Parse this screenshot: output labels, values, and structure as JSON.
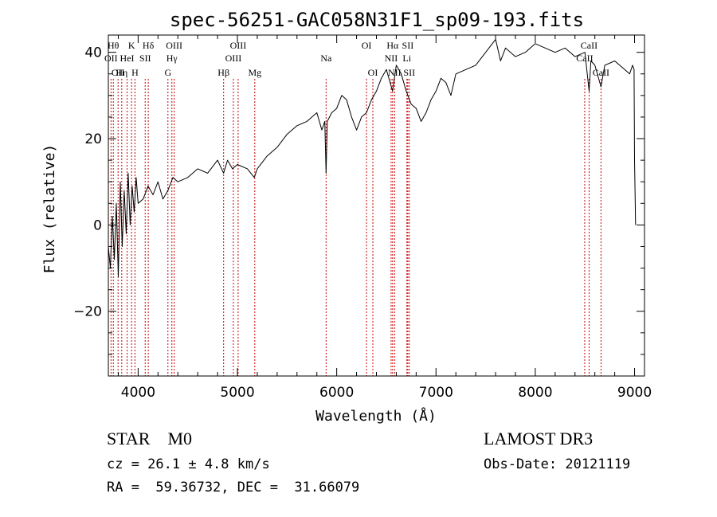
{
  "chart_data": {
    "type": "line",
    "title": "spec-56251-GAC058N31F1_sp09-193.fits",
    "xlabel": "Wavelength (Å)",
    "ylabel": "Flux (relative)",
    "xlim": [
      3700,
      9100
    ],
    "ylim": [
      -35,
      44
    ],
    "xticks": [
      {
        "value": 4000,
        "label": "4000"
      },
      {
        "value": 5000,
        "label": "5000"
      },
      {
        "value": 6000,
        "label": "6000"
      },
      {
        "value": 7000,
        "label": "7000"
      },
      {
        "value": 8000,
        "label": "8000"
      },
      {
        "value": 9000,
        "label": "9000"
      }
    ],
    "yticks": [
      {
        "value": -20,
        "label": "−20"
      },
      {
        "value": 0,
        "label": "0"
      },
      {
        "value": 20,
        "label": "20"
      },
      {
        "value": 40,
        "label": "40"
      }
    ],
    "series": [
      {
        "name": "flux",
        "color": "#000000",
        "x": [
          3700,
          3720,
          3740,
          3760,
          3780,
          3800,
          3820,
          3840,
          3860,
          3880,
          3900,
          3920,
          3940,
          3960,
          3980,
          4000,
          4050,
          4100,
          4150,
          4200,
          4250,
          4300,
          4350,
          4400,
          4500,
          4600,
          4700,
          4800,
          4861,
          4900,
          4950,
          5000,
          5100,
          5170,
          5200,
          5300,
          5400,
          5500,
          5600,
          5700,
          5800,
          5850,
          5880,
          5893,
          5905,
          5950,
          6000,
          6050,
          6100,
          6150,
          6200,
          6250,
          6300,
          6350,
          6400,
          6450,
          6500,
          6563,
          6600,
          6650,
          6700,
          6750,
          6800,
          6850,
          6900,
          6950,
          7000,
          7050,
          7100,
          7150,
          7200,
          7300,
          7400,
          7500,
          7600,
          7650,
          7700,
          7800,
          7900,
          8000,
          8100,
          8200,
          8300,
          8400,
          8500,
          8542,
          8560,
          8600,
          8662,
          8700,
          8800,
          8900,
          8950,
          8980,
          8995,
          9000,
          9010
        ],
        "values": [
          -5,
          -10,
          2,
          -8,
          5,
          -12,
          10,
          -5,
          8,
          -2,
          12,
          0,
          9,
          3,
          11,
          5,
          6,
          9,
          7,
          10,
          6,
          8,
          11,
          10,
          11,
          13,
          12,
          15,
          12,
          15,
          13,
          14,
          13,
          11,
          13,
          16,
          18,
          21,
          23,
          24,
          26,
          22,
          24,
          12,
          24,
          26,
          27,
          30,
          29,
          25,
          22,
          25,
          26,
          29,
          31,
          34,
          36,
          31,
          37,
          35,
          31,
          28,
          27,
          24,
          26,
          29,
          31,
          34,
          33,
          30,
          35,
          36,
          37,
          40,
          43,
          38,
          41,
          39,
          40,
          42,
          41,
          40,
          41,
          39,
          40,
          31,
          38,
          37,
          32,
          37,
          38,
          36,
          35,
          37,
          36,
          15,
          0
        ]
      }
    ],
    "line_markers": {
      "color": "#cc0000",
      "lines": [
        {
          "x": 3727,
          "label": "OII",
          "row": 2
        },
        {
          "x": 3750,
          "label": "Hθ",
          "row": 1
        },
        {
          "x": 3798,
          "label": "OII",
          "row": 3
        },
        {
          "x": 3835,
          "label": "Hη",
          "row": 3
        },
        {
          "x": 3889,
          "label": "HeI",
          "row": 2
        },
        {
          "x": 3934,
          "label": "K",
          "row": 1
        },
        {
          "x": 3968,
          "label": "H",
          "row": 3
        },
        {
          "x": 4071,
          "label": "SII",
          "row": 2
        },
        {
          "x": 4102,
          "label": "Hδ",
          "row": 1
        },
        {
          "x": 4300,
          "label": "G",
          "row": 3
        },
        {
          "x": 4340,
          "label": "Hγ",
          "row": 2
        },
        {
          "x": 4363,
          "label": "OIII",
          "row": 1
        },
        {
          "x": 4861,
          "label": "Hβ",
          "row": 3
        },
        {
          "x": 4959,
          "label": "OIII",
          "row": 2
        },
        {
          "x": 5007,
          "label": "OIII",
          "row": 1
        },
        {
          "x": 5175,
          "label": "Mg",
          "row": 3
        },
        {
          "x": 5893,
          "label": "Na",
          "row": 2
        },
        {
          "x": 6300,
          "label": "OI",
          "row": 1
        },
        {
          "x": 6364,
          "label": "OI",
          "row": 3
        },
        {
          "x": 6548,
          "label": "NII",
          "row": 2
        },
        {
          "x": 6563,
          "label": "Hα",
          "row": 1
        },
        {
          "x": 6583,
          "label": "NII",
          "row": 3
        },
        {
          "x": 6707,
          "label": "Li",
          "row": 2
        },
        {
          "x": 6716,
          "label": "SII",
          "row": 1
        },
        {
          "x": 6731,
          "label": "SII",
          "row": 3
        },
        {
          "x": 8498,
          "label": "CaII",
          "row": 2
        },
        {
          "x": 8542,
          "label": "CaII",
          "row": 1
        },
        {
          "x": 8662,
          "label": "CaII",
          "row": 3
        }
      ]
    }
  },
  "info": {
    "object_class": "STAR",
    "subclass": "M0",
    "redshift_text": "cz = 26.1 ± 4.8 km/s",
    "coords_text": "RA =  59.36732, DEC =  31.66079",
    "survey": "LAMOST DR3",
    "obs_date_text": "Obs-Date: 20121119"
  }
}
